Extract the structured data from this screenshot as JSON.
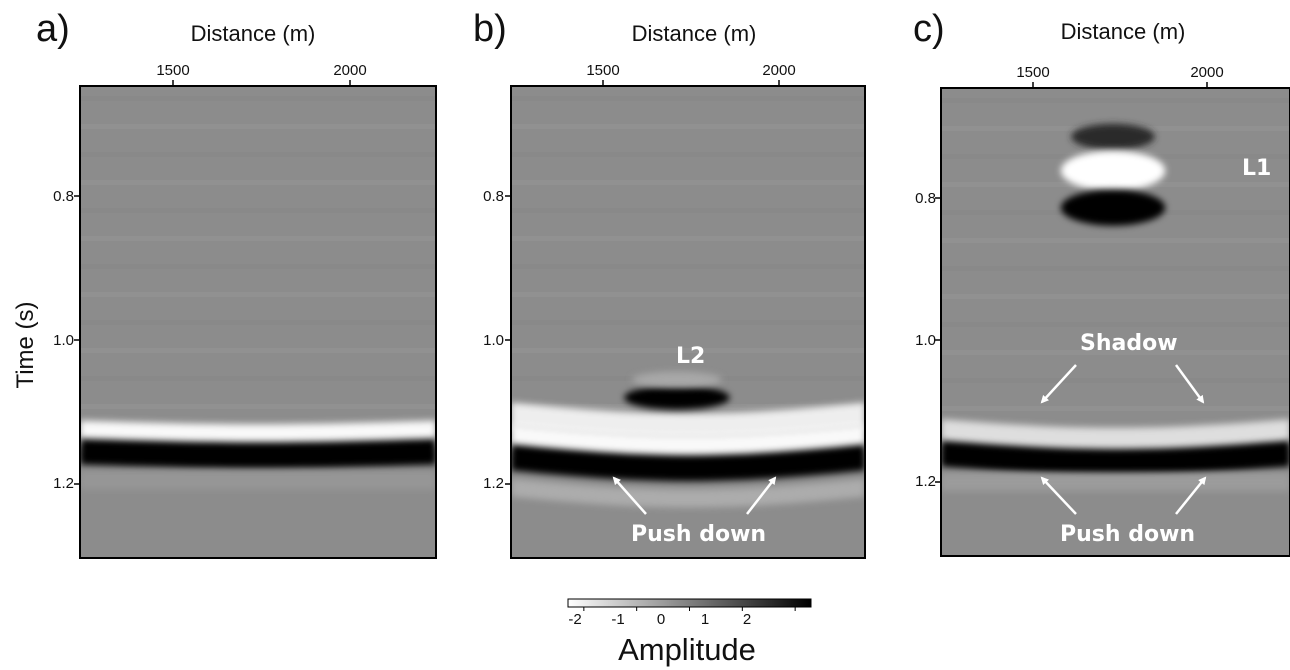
{
  "chart_data": [
    {
      "type": "heatmap",
      "panel": "a)",
      "xlabel": "Distance (m)",
      "ylabel": "Time (s)",
      "x_ticks": [
        1500,
        2000
      ],
      "y_ticks": [
        0.8,
        1.0,
        1.2
      ],
      "xlim": [
        1230,
        2240
      ],
      "ylim": [
        1.31,
        0.65
      ],
      "reflectors": [
        {
          "time": 1.13,
          "amplitude": -2.2,
          "undulation": 0.005
        },
        {
          "time": 1.155,
          "amplitude": 2.2,
          "undulation": 0.005
        },
        {
          "time": 1.195,
          "amplitude": -0.4,
          "undulation": 0.0
        }
      ],
      "annotations": []
    },
    {
      "type": "heatmap",
      "panel": "b)",
      "xlabel": "Distance (m)",
      "ylabel": "",
      "x_ticks": [
        1500,
        2000
      ],
      "y_ticks": [
        0.8,
        1.0,
        1.2
      ],
      "xlim": [
        1230,
        2240
      ],
      "ylim": [
        1.31,
        0.65
      ],
      "reflectors": [
        {
          "time": 1.105,
          "amplitude": -2.0,
          "undulation": 0.015
        },
        {
          "time": 1.135,
          "amplitude": -2.2,
          "undulation": 0.015
        },
        {
          "time": 1.163,
          "amplitude": 2.2,
          "undulation": 0.015
        },
        {
          "time": 1.205,
          "amplitude": -0.8,
          "undulation": 0.015
        }
      ],
      "lens": {
        "label": "L2",
        "time": 1.08,
        "x_range": [
          1560,
          1860
        ],
        "amplitude": 2.2
      },
      "annotations": [
        "L2",
        "Push down"
      ]
    },
    {
      "type": "heatmap",
      "panel": "c)",
      "xlabel": "Distance (m)",
      "ylabel": "",
      "x_ticks": [
        1500,
        2000
      ],
      "y_ticks": [
        0.8,
        1.0,
        1.2
      ],
      "xlim": [
        1230,
        2240
      ],
      "ylim": [
        1.31,
        0.65
      ],
      "reflectors": [
        {
          "time": 1.13,
          "amplitude": -1.7,
          "undulation": 0.012
        },
        {
          "time": 1.16,
          "amplitude": 2.2,
          "undulation": 0.012
        },
        {
          "time": 1.2,
          "amplitude": -0.5,
          "undulation": 0.0
        }
      ],
      "lens": {
        "label": "L1",
        "time": 0.77,
        "x_range": [
          1580,
          1880
        ],
        "amplitude": 2.4
      },
      "annotations": [
        "L1",
        "Shadow",
        "Push down"
      ]
    }
  ],
  "panels": [
    {
      "letter": "a)",
      "xlabel": "Distance (m)",
      "xtick_1": "1500",
      "xtick_2": "2000"
    },
    {
      "letter": "b)",
      "xlabel": "Distance (m)",
      "xtick_1": "1500",
      "xtick_2": "2000"
    },
    {
      "letter": "c)",
      "xlabel": "Distance (m)",
      "xtick_1": "1500",
      "xtick_2": "2000"
    }
  ],
  "y_ticks": [
    "0.8",
    "1.0",
    "1.2"
  ],
  "ylabel": "Time (s)",
  "annotations": {
    "l1": "L1",
    "l2": "L2",
    "shadow": "Shadow",
    "push_down": "Push down"
  },
  "colorbar": {
    "title": "Amplitude",
    "ticks": [
      "-2",
      "-1",
      "0",
      "1",
      "2"
    ],
    "range": [
      -2.3,
      2.3
    ],
    "low_color": "#ffffff",
    "high_color": "#000000"
  },
  "colors": {
    "background_gray": "#8c8c8c",
    "arrow": "#ffffff",
    "frame": "#000000"
  }
}
